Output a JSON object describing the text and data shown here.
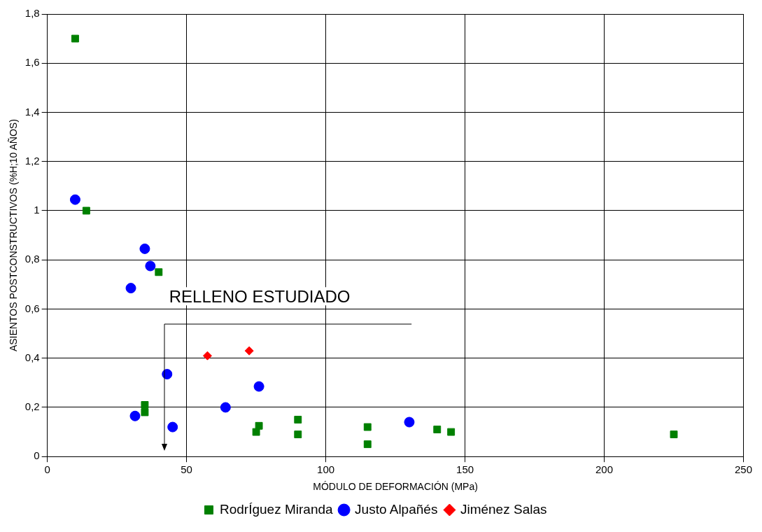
{
  "chart_data": {
    "type": "scatter",
    "xlabel": "MÓDULO DE DEFORMACIÓN (MPa)",
    "ylabel": "ASIENTOS POSTCONSTRUCTIVOS (%H;10 AÑOS)",
    "xlim": [
      0,
      250
    ],
    "xticks": [
      0,
      50,
      100,
      150,
      200,
      250
    ],
    "ylim": [
      0,
      1.8
    ],
    "yticks": [
      0,
      {
        "value": 0.2,
        "label": "0,2"
      },
      {
        "value": 0.4,
        "label": "0,4"
      },
      {
        "value": 0.6,
        "label": "0,6"
      },
      {
        "value": 0.8,
        "label": "0,8"
      },
      1,
      {
        "value": 1.2,
        "label": "1,2"
      },
      {
        "value": 1.4,
        "label": "1,4"
      },
      {
        "value": 1.6,
        "label": "1,6"
      },
      {
        "value": 1.8,
        "label": "1,8"
      }
    ],
    "grid": true,
    "legend": "bottom",
    "series": [
      {
        "name": "RodrÍguez Miranda",
        "color": "#008000",
        "marker": "square",
        "x": [
          10,
          14,
          40,
          35,
          35,
          75,
          76,
          90,
          90,
          115,
          115,
          140,
          145,
          225
        ],
        "values": [
          1.7,
          1,
          0.75,
          0.21,
          0.18,
          0.1,
          0.125,
          0.15,
          0.09,
          0.12,
          0.05,
          0.11,
          0.1,
          0.09
        ]
      },
      {
        "name": "Justo Alpañés",
        "color": "#0000ff",
        "marker": "circle",
        "x": [
          10,
          35,
          37,
          30,
          43,
          31.5,
          45,
          64,
          76,
          130
        ],
        "values": [
          1.045,
          0.845,
          0.775,
          0.685,
          0.335,
          0.165,
          0.12,
          0.2,
          0.285,
          0.14
        ]
      },
      {
        "name": "Jiménez Salas",
        "color": "#ff0000",
        "marker": "diamond",
        "x": [
          57.5,
          72.5
        ],
        "values": [
          0.41,
          0.43
        ]
      }
    ],
    "annotations": [
      "RELLENO ESTUDIADO"
    ]
  }
}
